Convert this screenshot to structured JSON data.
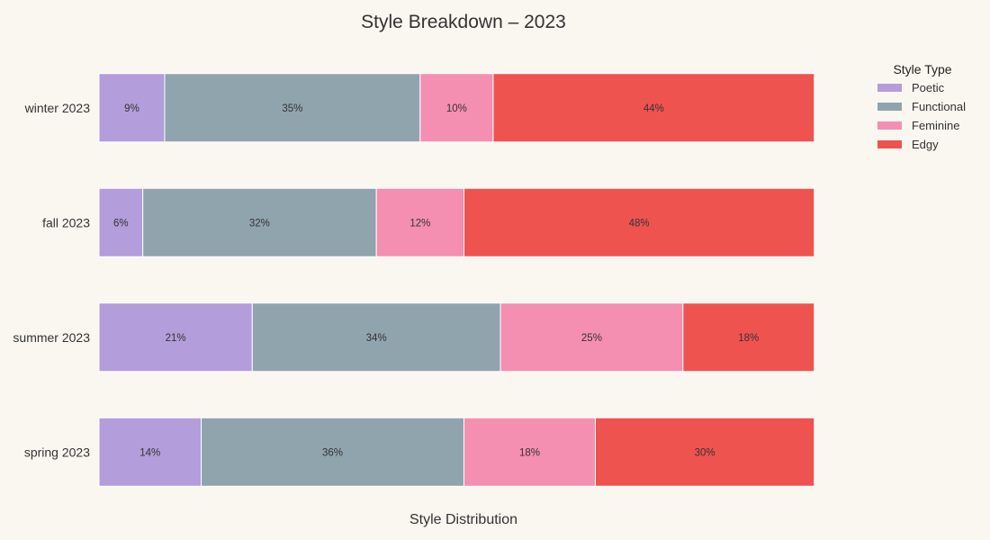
{
  "chart_data": {
    "type": "bar",
    "orientation": "horizontal",
    "stacked": true,
    "title": "Style Breakdown – 2023",
    "xlabel": "Style Distribution",
    "ylabel": "",
    "xlim": [
      0,
      100
    ],
    "grid": false,
    "legend_position": "top-right",
    "legend_title": "Style Type",
    "categories": [
      "spring 2023",
      "summer 2023",
      "fall 2023",
      "winter 2023"
    ],
    "series": [
      {
        "name": "Poetic",
        "color": "#b39ddb",
        "values": [
          14,
          21,
          6,
          9
        ]
      },
      {
        "name": "Functional",
        "color": "#90a4ae",
        "values": [
          36,
          34,
          32,
          35
        ]
      },
      {
        "name": "Feminine",
        "color": "#f48fb1",
        "values": [
          18,
          25,
          12,
          10
        ]
      },
      {
        "name": "Edgy",
        "color": "#ef5350",
        "values": [
          30,
          18,
          48,
          44
        ]
      }
    ],
    "label_suffix": "%"
  }
}
